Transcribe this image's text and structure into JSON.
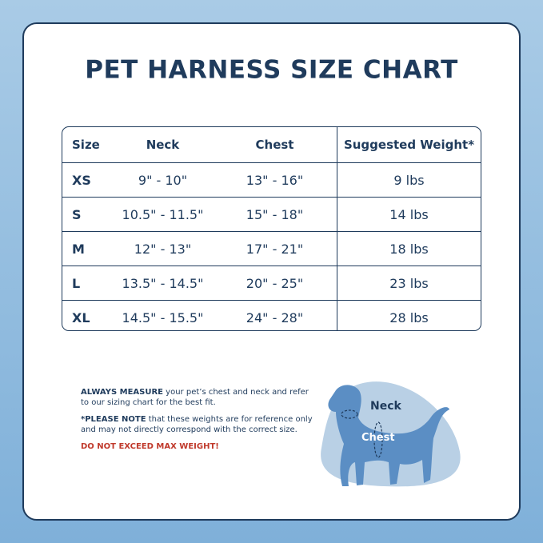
{
  "title": "PET HARNESS SIZE CHART",
  "table": {
    "header": [
      "Size",
      "Neck",
      "Chest",
      "Suggested Weight*"
    ],
    "rows": [
      [
        "XS",
        "9\" - 10\"",
        "13\" - 16\"",
        "9 lbs"
      ],
      [
        "S",
        "10.5\" - 11.5\"",
        "15\" - 18\"",
        "14 lbs"
      ],
      [
        "M",
        "12\" - 13\"",
        "17\" - 21\"",
        "18 lbs"
      ],
      [
        "L",
        "13.5\" - 14.5\"",
        "20\" - 25\"",
        "23 lbs"
      ],
      [
        "XL",
        "14.5\" - 15.5\"",
        "24\" - 28\"",
        "28 lbs"
      ]
    ]
  },
  "notes": {
    "measure": {
      "bold": "ALWAYS MEASURE",
      "text": " your pet’s chest and neck and refer to our sizing chart for the best fit."
    },
    "please_note": {
      "bold": "*PLEASE NOTE",
      "text": " that these weights are for reference only and may not directly correspond with the correct size."
    },
    "warning": "DO NOT EXCEED MAX WEIGHT!"
  },
  "diagram": {
    "neck_label": "Neck",
    "chest_label": "Chest"
  }
}
